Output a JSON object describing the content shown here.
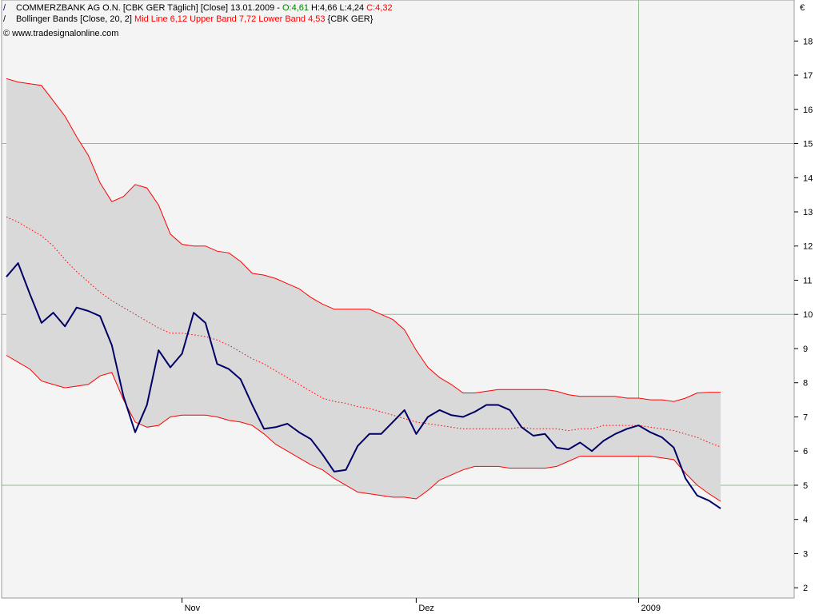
{
  "header": {
    "line1": {
      "symbol_text": "COMMERZBANK AG O.N. [CBK GER  Täglich] [Close] 13.01.2009 - ",
      "open_text": "O:4,61",
      "high_text": " H:4,66",
      "low_text": " L:4,24",
      "close_text": " C:4,32"
    },
    "line2": {
      "indicator_text": "Bollinger Bands [Close, 20, 2] ",
      "values_text": "Mid Line 6,12 Upper Band 7,72 Lower Band 4,53",
      "suffix_text": " {CBK GER}"
    },
    "line3": "© www.tradesignalonline.com"
  },
  "colors": {
    "price": "#000066",
    "bands": "#ff0000",
    "midline": "#ff0000",
    "band_fill": "#d9d9d9",
    "plot_bg": "#f4f4f4",
    "open_color": "#008000",
    "high_low_color": "#000000",
    "close_color": "#ff0000",
    "grid_major": "#8fbc8f"
  },
  "chart_data": {
    "type": "line",
    "title": "",
    "currency_label": "€",
    "y_axis": {
      "min": 1.7,
      "max": 19.2,
      "ticks": [
        2,
        3,
        4,
        5,
        6,
        7,
        8,
        9,
        10,
        11,
        12,
        13,
        14,
        15,
        16,
        17,
        18
      ]
    },
    "x_labels": [
      {
        "label": "Nov",
        "index": 15
      },
      {
        "label": "Dez",
        "index": 35
      },
      {
        "label": "2009",
        "index": 54
      }
    ],
    "grid": {
      "horizontal_major": [
        5,
        10,
        15
      ],
      "vertical": [
        54
      ]
    },
    "num_points": 62,
    "series": [
      {
        "name": "COMMERZBANK AG O.N.",
        "values": [
          11.1,
          11.5,
          10.6,
          9.75,
          10.05,
          9.65,
          10.2,
          10.1,
          9.95,
          9.1,
          7.6,
          6.55,
          7.35,
          8.95,
          8.45,
          8.85,
          10.05,
          9.75,
          8.55,
          8.4,
          8.1,
          7.35,
          6.65,
          6.7,
          6.8,
          6.55,
          6.35,
          5.9,
          5.4,
          5.45,
          6.15,
          6.5,
          6.5,
          6.85,
          7.2,
          6.5,
          7.0,
          7.2,
          7.05,
          7.0,
          7.15,
          7.35,
          7.35,
          7.2,
          6.7,
          6.45,
          6.5,
          6.1,
          6.05,
          6.25,
          6.0,
          6.3,
          6.5,
          6.65,
          6.75,
          6.55,
          6.4,
          6.1,
          5.2,
          4.7,
          4.55,
          4.32
        ]
      },
      {
        "name": "Upper Band",
        "values": [
          16.9,
          16.8,
          16.75,
          16.7,
          16.25,
          15.8,
          15.2,
          14.65,
          13.85,
          13.3,
          13.45,
          13.8,
          13.7,
          13.2,
          12.35,
          12.05,
          12.0,
          12.0,
          11.85,
          11.8,
          11.55,
          11.2,
          11.15,
          11.05,
          10.9,
          10.75,
          10.5,
          10.3,
          10.15,
          10.15,
          10.15,
          10.15,
          10.0,
          9.85,
          9.55,
          8.95,
          8.45,
          8.15,
          7.95,
          7.7,
          7.7,
          7.75,
          7.8,
          7.8,
          7.8,
          7.8,
          7.8,
          7.75,
          7.65,
          7.6,
          7.6,
          7.6,
          7.6,
          7.55,
          7.55,
          7.5,
          7.5,
          7.45,
          7.55,
          7.7,
          7.72,
          7.72
        ]
      },
      {
        "name": "Mid Line",
        "values": [
          12.85,
          12.7,
          12.5,
          12.3,
          12.0,
          11.6,
          11.25,
          10.95,
          10.65,
          10.4,
          10.2,
          10.0,
          9.8,
          9.6,
          9.45,
          9.45,
          9.4,
          9.35,
          9.25,
          9.1,
          8.9,
          8.7,
          8.55,
          8.35,
          8.15,
          7.95,
          7.75,
          7.55,
          7.45,
          7.4,
          7.3,
          7.25,
          7.15,
          7.05,
          6.95,
          6.85,
          6.8,
          6.75,
          6.7,
          6.65,
          6.65,
          6.65,
          6.65,
          6.65,
          6.7,
          6.65,
          6.65,
          6.65,
          6.6,
          6.65,
          6.65,
          6.75,
          6.75,
          6.75,
          6.75,
          6.7,
          6.65,
          6.6,
          6.5,
          6.4,
          6.25,
          6.12
        ]
      },
      {
        "name": "Lower Band",
        "values": [
          8.8,
          8.6,
          8.4,
          8.05,
          7.95,
          7.85,
          7.9,
          7.95,
          8.2,
          8.3,
          7.5,
          6.85,
          6.7,
          6.75,
          7.0,
          7.05,
          7.05,
          7.05,
          7.0,
          6.9,
          6.85,
          6.75,
          6.5,
          6.2,
          6.0,
          5.8,
          5.6,
          5.45,
          5.2,
          5.0,
          4.8,
          4.75,
          4.7,
          4.65,
          4.65,
          4.6,
          4.85,
          5.15,
          5.3,
          5.45,
          5.55,
          5.55,
          5.55,
          5.5,
          5.5,
          5.5,
          5.5,
          5.55,
          5.7,
          5.85,
          5.85,
          5.85,
          5.85,
          5.85,
          5.85,
          5.85,
          5.8,
          5.75,
          5.35,
          5.0,
          4.75,
          4.53
        ]
      }
    ]
  }
}
